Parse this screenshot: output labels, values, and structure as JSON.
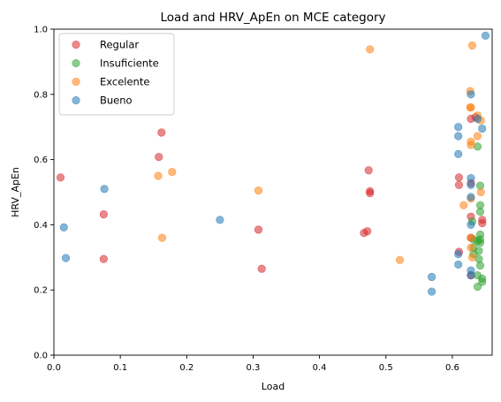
{
  "chart_data": {
    "type": "scatter",
    "title": "Load and HRV_ApEn on MCE category",
    "xlabel": "Load",
    "ylabel": "HRV_ApEn",
    "xlim": [
      0,
      0.66
    ],
    "ylim": [
      0,
      1.0
    ],
    "xticks": [
      "0.0",
      "0.1",
      "0.2",
      "0.3",
      "0.4",
      "0.5",
      "0.6"
    ],
    "yticks": [
      "0.0",
      "0.2",
      "0.4",
      "0.6",
      "0.8",
      "1.0"
    ],
    "grid": false,
    "legend_position": "top-left",
    "series": [
      {
        "name": "Regular",
        "color": "#d62728",
        "points": [
          [
            0.01,
            0.545
          ],
          [
            0.075,
            0.432
          ],
          [
            0.075,
            0.295
          ],
          [
            0.158,
            0.608
          ],
          [
            0.162,
            0.683
          ],
          [
            0.308,
            0.385
          ],
          [
            0.313,
            0.265
          ],
          [
            0.467,
            0.375
          ],
          [
            0.472,
            0.38
          ],
          [
            0.474,
            0.567
          ],
          [
            0.476,
            0.503
          ],
          [
            0.476,
            0.497
          ],
          [
            0.61,
            0.545
          ],
          [
            0.61,
            0.522
          ],
          [
            0.61,
            0.317
          ],
          [
            0.628,
            0.725
          ],
          [
            0.628,
            0.528
          ],
          [
            0.628,
            0.425
          ],
          [
            0.628,
            0.36
          ],
          [
            0.628,
            0.245
          ],
          [
            0.635,
            0.73
          ],
          [
            0.645,
            0.415
          ],
          [
            0.645,
            0.405
          ]
        ]
      },
      {
        "name": "Insuficiente",
        "color": "#2ca02c",
        "points": [
          [
            0.63,
            0.41
          ],
          [
            0.632,
            0.355
          ],
          [
            0.632,
            0.33
          ],
          [
            0.632,
            0.31
          ],
          [
            0.638,
            0.64
          ],
          [
            0.638,
            0.35
          ],
          [
            0.638,
            0.245
          ],
          [
            0.638,
            0.21
          ],
          [
            0.64,
            0.32
          ],
          [
            0.64,
            0.295
          ],
          [
            0.642,
            0.52
          ],
          [
            0.642,
            0.46
          ],
          [
            0.642,
            0.44
          ],
          [
            0.642,
            0.37
          ],
          [
            0.642,
            0.355
          ],
          [
            0.642,
            0.345
          ],
          [
            0.642,
            0.275
          ],
          [
            0.645,
            0.235
          ],
          [
            0.645,
            0.225
          ]
        ]
      },
      {
        "name": "Excelente",
        "color": "#ff7f0e",
        "points": [
          [
            0.157,
            0.55
          ],
          [
            0.163,
            0.36
          ],
          [
            0.178,
            0.562
          ],
          [
            0.308,
            0.505
          ],
          [
            0.476,
            0.938
          ],
          [
            0.521,
            0.292
          ],
          [
            0.617,
            0.46
          ],
          [
            0.627,
            0.81
          ],
          [
            0.627,
            0.76
          ],
          [
            0.628,
            0.76
          ],
          [
            0.628,
            0.655
          ],
          [
            0.628,
            0.645
          ],
          [
            0.628,
            0.48
          ],
          [
            0.628,
            0.36
          ],
          [
            0.628,
            0.33
          ],
          [
            0.63,
            0.95
          ],
          [
            0.63,
            0.3
          ],
          [
            0.638,
            0.735
          ],
          [
            0.638,
            0.672
          ],
          [
            0.643,
            0.72
          ],
          [
            0.643,
            0.5
          ]
        ]
      },
      {
        "name": "Bueno",
        "color": "#1f77b4",
        "points": [
          [
            0.015,
            0.392
          ],
          [
            0.018,
            0.298
          ],
          [
            0.076,
            0.51
          ],
          [
            0.25,
            0.415
          ],
          [
            0.569,
            0.24
          ],
          [
            0.569,
            0.195
          ],
          [
            0.609,
            0.7
          ],
          [
            0.609,
            0.672
          ],
          [
            0.609,
            0.617
          ],
          [
            0.609,
            0.31
          ],
          [
            0.609,
            0.278
          ],
          [
            0.628,
            0.8
          ],
          [
            0.628,
            0.543
          ],
          [
            0.628,
            0.522
          ],
          [
            0.628,
            0.485
          ],
          [
            0.628,
            0.4
          ],
          [
            0.628,
            0.26
          ],
          [
            0.628,
            0.245
          ],
          [
            0.638,
            0.725
          ],
          [
            0.645,
            0.695
          ],
          [
            0.65,
            0.98
          ]
        ]
      }
    ]
  }
}
